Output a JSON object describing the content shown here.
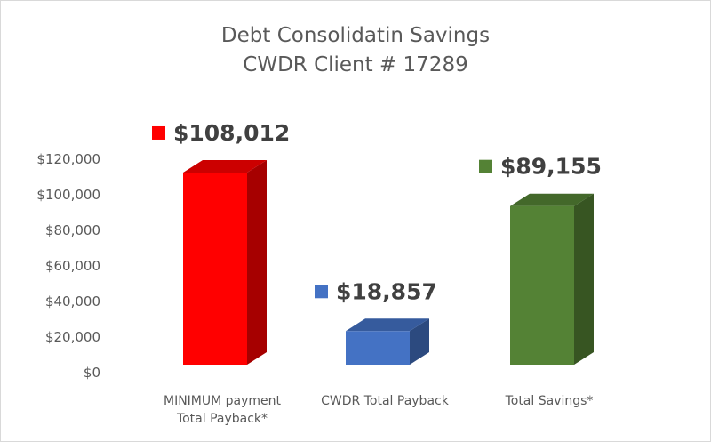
{
  "chart_data": {
    "type": "bar",
    "title": [
      "Debt Consolidatin Savings",
      "CWDR Client # 17289"
    ],
    "categories": [
      [
        "MINIMUM payment",
        "Total Payback*"
      ],
      [
        "CWDR Total Payback"
      ],
      [
        "Total Savings*"
      ]
    ],
    "values": [
      108012,
      18857,
      89155
    ],
    "data_labels": [
      "$108,012",
      "$18,857",
      "$89,155"
    ],
    "colors": [
      "#ff0000",
      "#4472c4",
      "#548235"
    ],
    "yticks": [
      "$0",
      "$20,000",
      "$40,000",
      "$60,000",
      "$80,000",
      "$100,000",
      "$120,000"
    ],
    "ylim": [
      0,
      120000
    ],
    "style": "3d-column",
    "grid": false,
    "legend": "none"
  }
}
